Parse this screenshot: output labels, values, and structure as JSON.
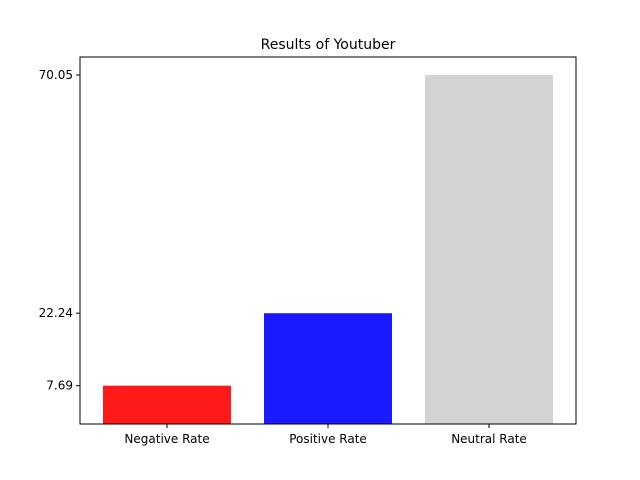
{
  "chart_data": {
    "type": "bar",
    "title": "Results of Youtuber",
    "categories": [
      "Negative Rate",
      "Positive Rate",
      "Neutral Rate"
    ],
    "values": [
      7.69,
      22.24,
      70.05
    ],
    "colors": [
      "#ff1a1a",
      "#1a1aff",
      "#d3d3d3"
    ],
    "ytick_labels": [
      "7.69",
      "22.24",
      "70.05"
    ],
    "xlabel": "",
    "ylabel": "",
    "ylim": [
      0,
      70.05
    ],
    "grid": false,
    "legend": "none"
  }
}
